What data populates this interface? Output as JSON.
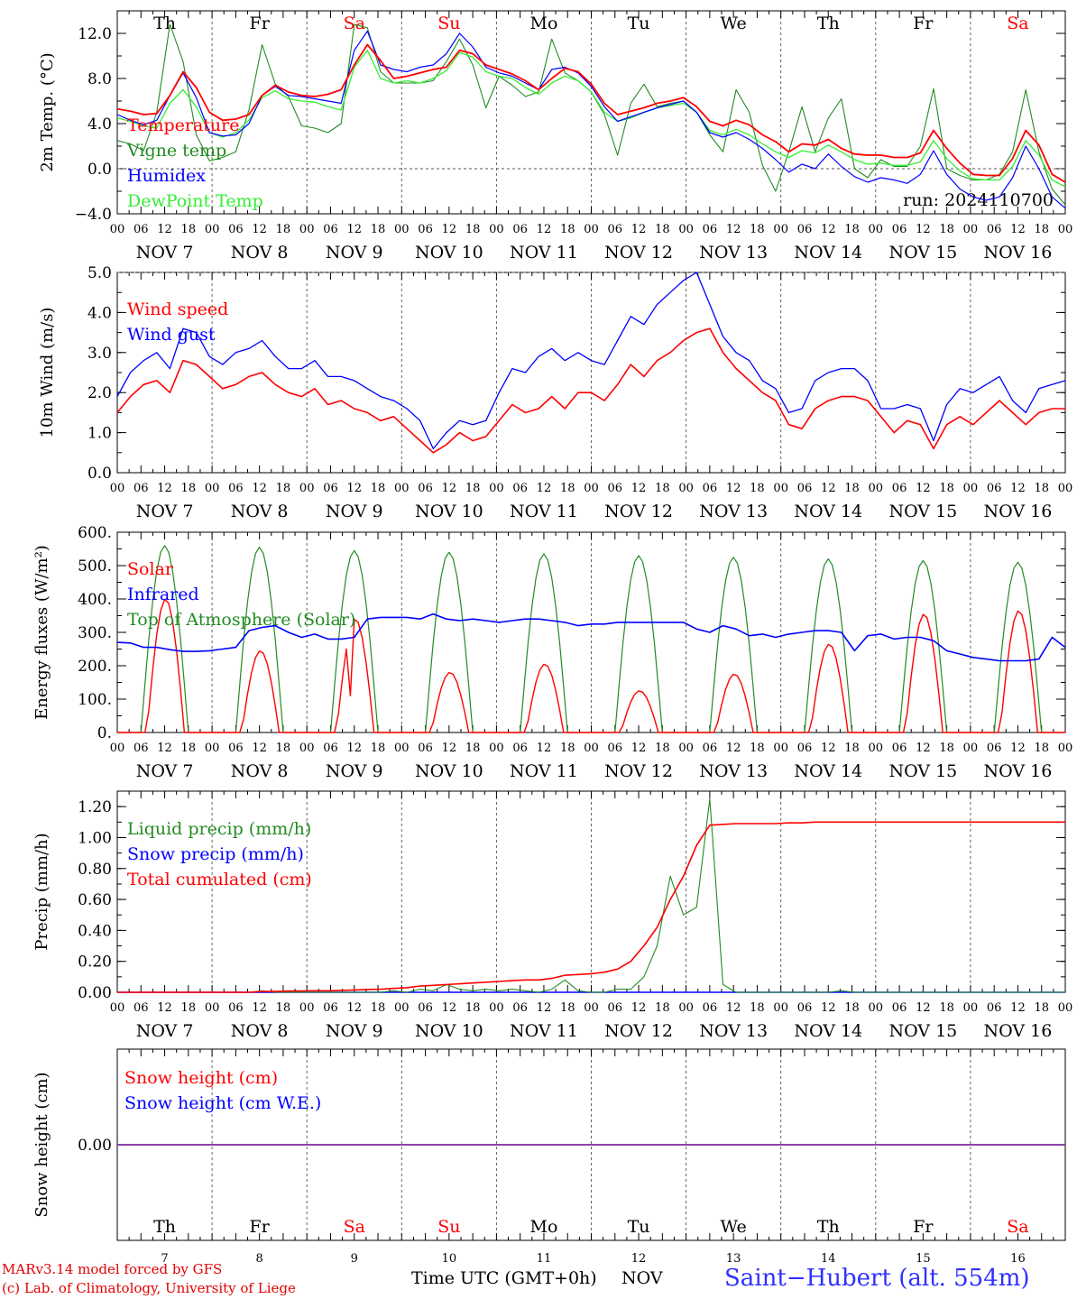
{
  "chart_data": [
    {
      "type": "line",
      "ylabel": "2m Temp. (°C)",
      "ylim": [
        -4.0,
        14.0
      ],
      "yticks": [
        -4.0,
        0.0,
        4.0,
        8.0,
        12.0
      ],
      "ytick_labels": [
        "−4.0",
        "0.0",
        "4.0",
        "8.0",
        "12.0"
      ],
      "legend_placement": "top-left",
      "annotation": "run: 2024110700",
      "series": [
        {
          "name": "Temperature",
          "color": "#ff0000",
          "values": [
            5.3,
            5.1,
            4.8,
            4.9,
            6.5,
            8.6,
            7.2,
            5.0,
            4.3,
            4.4,
            4.8,
            6.5,
            7.4,
            6.8,
            6.5,
            6.4,
            6.6,
            7.0,
            9.2,
            11.0,
            9.6,
            8.0,
            8.2,
            8.5,
            8.8,
            9.0,
            10.5,
            10.2,
            9.2,
            8.8,
            8.4,
            7.8,
            7.0,
            8.0,
            8.9,
            8.6,
            7.5,
            5.8,
            4.8,
            5.1,
            5.4,
            5.8,
            6.0,
            6.3,
            5.5,
            4.2,
            3.8,
            4.3,
            3.9,
            3.0,
            2.4,
            1.5,
            2.2,
            2.1,
            2.6,
            1.8,
            1.3,
            1.2,
            1.2,
            1.0,
            1.0,
            1.4,
            3.4,
            1.8,
            0.5,
            -0.5,
            -0.6,
            -0.6,
            0.9,
            3.4,
            2.1,
            -0.5,
            -1.2
          ]
        },
        {
          "name": "Vigne temp",
          "color": "#228b22",
          "values": [
            2.5,
            2.2,
            1.6,
            5.0,
            12.8,
            9.5,
            3.0,
            0.7,
            1.0,
            1.5,
            5.2,
            11.0,
            7.5,
            6.4,
            3.8,
            3.6,
            3.2,
            4.0,
            12.8,
            12.5,
            8.6,
            7.6,
            7.6,
            7.6,
            7.8,
            9.5,
            11.5,
            9.2,
            5.4,
            8.2,
            7.4,
            6.4,
            6.8,
            11.5,
            8.5,
            7.8,
            6.8,
            4.8,
            1.2,
            5.8,
            7.5,
            5.5,
            5.8,
            6.0,
            5.0,
            3.0,
            1.5,
            7.0,
            5.0,
            0.3,
            -2.0,
            1.5,
            5.5,
            1.5,
            4.5,
            6.2,
            0.0,
            -0.8,
            0.8,
            0.2,
            0.2,
            2.0,
            7.1,
            0.0,
            -0.6,
            -1.0,
            -1.0,
            -0.5,
            1.5,
            7.0,
            1.5,
            -1.8,
            -3.2
          ]
        },
        {
          "name": "Humidex",
          "color": "#0000ff",
          "values": [
            4.8,
            4.3,
            3.9,
            4.3,
            6.5,
            8.5,
            6.3,
            3.2,
            2.9,
            3.0,
            4.0,
            6.5,
            7.3,
            6.5,
            6.4,
            6.2,
            6.0,
            5.8,
            10.5,
            12.2,
            9.2,
            8.8,
            8.6,
            9.0,
            9.2,
            10.2,
            12.0,
            10.8,
            9.0,
            8.5,
            8.2,
            7.6,
            7.0,
            8.8,
            9.0,
            8.5,
            7.3,
            5.5,
            4.2,
            4.6,
            5.0,
            5.4,
            5.7,
            6.0,
            5.0,
            3.2,
            2.8,
            3.2,
            2.6,
            1.8,
            0.8,
            -0.3,
            0.4,
            0.0,
            1.3,
            0.2,
            -0.7,
            -1.2,
            -0.8,
            -1.0,
            -1.3,
            -0.5,
            1.6,
            -0.5,
            -1.8,
            -2.5,
            -2.8,
            -2.5,
            -0.8,
            2.0,
            0.0,
            -2.5,
            -3.5
          ]
        },
        {
          "name": "DewPoint Temp",
          "color": "#33ee33",
          "values": [
            4.5,
            4.2,
            3.8,
            3.6,
            5.8,
            7.0,
            5.5,
            3.2,
            2.8,
            3.2,
            4.3,
            6.3,
            6.9,
            6.2,
            6.0,
            5.9,
            5.5,
            5.2,
            9.0,
            10.5,
            8.0,
            7.6,
            7.8,
            7.6,
            8.0,
            8.7,
            10.3,
            9.9,
            8.6,
            8.2,
            8.0,
            7.2,
            6.6,
            7.6,
            8.2,
            7.8,
            6.8,
            5.0,
            4.2,
            4.5,
            5.0,
            5.4,
            5.6,
            5.8,
            5.0,
            3.4,
            3.0,
            3.5,
            3.0,
            2.2,
            1.5,
            1.0,
            1.6,
            1.4,
            2.1,
            1.5,
            0.8,
            0.4,
            0.5,
            0.3,
            0.3,
            0.6,
            2.5,
            0.9,
            -0.2,
            -0.9,
            -1.0,
            -1.0,
            0.2,
            2.5,
            1.2,
            -1.0,
            -1.6
          ]
        }
      ]
    },
    {
      "type": "line",
      "ylabel": "10m Wind (m/s)",
      "ylim": [
        0.0,
        5.0
      ],
      "yticks": [
        0.0,
        1.0,
        2.0,
        3.0,
        4.0,
        5.0
      ],
      "ytick_labels": [
        "0.0",
        "1.0",
        "2.0",
        "3.0",
        "4.0",
        "5.0"
      ],
      "legend_placement": "top-left",
      "series": [
        {
          "name": "Wind speed",
          "color": "#ff0000",
          "values": [
            1.5,
            1.9,
            2.2,
            2.3,
            2.0,
            2.8,
            2.7,
            2.4,
            2.1,
            2.2,
            2.4,
            2.5,
            2.2,
            2.0,
            1.9,
            2.1,
            1.7,
            1.8,
            1.6,
            1.5,
            1.3,
            1.4,
            1.1,
            0.8,
            0.5,
            0.7,
            1.0,
            0.8,
            0.9,
            1.3,
            1.7,
            1.5,
            1.6,
            1.9,
            1.6,
            2.0,
            2.0,
            1.8,
            2.2,
            2.7,
            2.4,
            2.8,
            3.0,
            3.3,
            3.5,
            3.6,
            3.0,
            2.6,
            2.3,
            2.0,
            1.8,
            1.2,
            1.1,
            1.6,
            1.8,
            1.9,
            1.9,
            1.8,
            1.4,
            1.0,
            1.3,
            1.2,
            0.6,
            1.2,
            1.4,
            1.2,
            1.5,
            1.8,
            1.5,
            1.2,
            1.5,
            1.6,
            1.6
          ]
        },
        {
          "name": "Wind gust",
          "color": "#0000ff",
          "values": [
            1.9,
            2.5,
            2.8,
            3.0,
            2.6,
            3.6,
            3.5,
            2.9,
            2.7,
            3.0,
            3.1,
            3.3,
            2.9,
            2.6,
            2.6,
            2.8,
            2.4,
            2.4,
            2.3,
            2.1,
            1.9,
            1.8,
            1.6,
            1.3,
            0.6,
            1.0,
            1.3,
            1.2,
            1.3,
            2.0,
            2.6,
            2.5,
            2.9,
            3.1,
            2.8,
            3.0,
            2.8,
            2.7,
            3.3,
            3.9,
            3.7,
            4.2,
            4.5,
            4.8,
            5.0,
            4.2,
            3.4,
            3.0,
            2.8,
            2.3,
            2.1,
            1.5,
            1.6,
            2.3,
            2.5,
            2.6,
            2.6,
            2.3,
            1.6,
            1.6,
            1.7,
            1.6,
            0.8,
            1.7,
            2.1,
            2.0,
            2.2,
            2.4,
            1.8,
            1.5,
            2.1,
            2.2,
            2.3
          ]
        }
      ]
    },
    {
      "type": "line",
      "ylabel": "Energy fluxes (W/m²)",
      "ylim": [
        0,
        600
      ],
      "yticks": [
        0,
        100,
        200,
        300,
        400,
        500,
        600
      ],
      "ytick_labels": [
        "0.",
        "100.",
        "200.",
        "300.",
        "400.",
        "500.",
        "600."
      ],
      "legend_placement": "top-left",
      "series": [
        {
          "name": "Solar",
          "color": "#ff0000",
          "days_peak": [
            400,
            245,
            340,
            180,
            205,
            125,
            175,
            265,
            355,
            365
          ],
          "dip_day3": 110
        },
        {
          "name": "Infrared",
          "color": "#0000ff",
          "values": [
            270,
            268,
            255,
            255,
            248,
            243,
            243,
            245,
            250,
            255,
            305,
            315,
            320,
            300,
            285,
            295,
            280,
            280,
            285,
            340,
            345,
            345,
            345,
            340,
            355,
            340,
            335,
            340,
            335,
            330,
            335,
            340,
            340,
            335,
            330,
            320,
            325,
            325,
            330,
            330,
            330,
            330,
            330,
            330,
            310,
            300,
            320,
            310,
            290,
            295,
            285,
            295,
            300,
            305,
            305,
            300,
            245,
            290,
            295,
            280,
            285,
            285,
            275,
            245,
            235,
            225,
            220,
            215,
            215,
            215,
            220,
            285,
            255
          ]
        },
        {
          "name": "Top of Atmosphere (Solar)",
          "color": "#228b22",
          "days_peak": [
            560,
            555,
            545,
            540,
            535,
            530,
            525,
            520,
            515,
            510
          ]
        }
      ]
    },
    {
      "type": "line",
      "ylabel": "Precip (mm/h)",
      "ylim": [
        0.0,
        1.3
      ],
      "yticks": [
        0.0,
        0.2,
        0.4,
        0.6,
        0.8,
        1.0,
        1.2
      ],
      "ytick_labels": [
        "0.00",
        "0.20",
        "0.40",
        "0.60",
        "0.80",
        "1.00",
        "1.20"
      ],
      "legend_placement": "top-left",
      "series": [
        {
          "name": "Liquid precip (mm/h)",
          "color": "#228b22",
          "values": [
            0,
            0,
            0,
            0,
            0,
            0,
            0,
            0,
            0,
            0,
            0,
            0.01,
            0,
            0,
            0,
            0,
            0,
            0,
            0,
            0,
            0,
            0.01,
            0,
            0.02,
            0.01,
            0.05,
            0.02,
            0.01,
            0.02,
            0.01,
            0.02,
            0.01,
            0,
            0.02,
            0.08,
            0.01,
            0,
            0,
            0.02,
            0.02,
            0.1,
            0.3,
            0.75,
            0.5,
            0.55,
            1.25,
            0.05,
            0,
            0,
            0,
            0,
            0,
            0,
            0,
            0,
            0.01,
            0,
            0,
            0,
            0,
            0,
            0,
            0,
            0,
            0,
            0,
            0,
            0,
            0,
            0,
            0,
            0,
            0
          ]
        },
        {
          "name": "Snow precip (mm/h)",
          "color": "#0000ff",
          "values": [
            0,
            0,
            0,
            0,
            0,
            0,
            0,
            0,
            0,
            0,
            0,
            0,
            0,
            0,
            0,
            0,
            0,
            0,
            0,
            0,
            0,
            0,
            0,
            0,
            0,
            0,
            0,
            0,
            0,
            0,
            0,
            0,
            0,
            0,
            0,
            0,
            0,
            0,
            0,
            0,
            0,
            0,
            0,
            0,
            0,
            0,
            0,
            0,
            0,
            0,
            0,
            0,
            0,
            0,
            0,
            0,
            0,
            0,
            0,
            0,
            0,
            0,
            0,
            0,
            0,
            0,
            0,
            0,
            0,
            0,
            0,
            0,
            0
          ]
        },
        {
          "name": "Total cumulated (cm)",
          "color": "#ff0000",
          "values": [
            0,
            0,
            0,
            0,
            0,
            0,
            0,
            0,
            0,
            0,
            0,
            0.005,
            0.005,
            0.008,
            0.008,
            0.01,
            0.01,
            0.012,
            0.015,
            0.018,
            0.02,
            0.025,
            0.03,
            0.04,
            0.045,
            0.05,
            0.055,
            0.06,
            0.065,
            0.07,
            0.075,
            0.08,
            0.08,
            0.09,
            0.11,
            0.115,
            0.12,
            0.13,
            0.15,
            0.2,
            0.3,
            0.42,
            0.6,
            0.75,
            0.95,
            1.08,
            1.085,
            1.09,
            1.09,
            1.09,
            1.09,
            1.095,
            1.095,
            1.1,
            1.1,
            1.1,
            1.1,
            1.1,
            1.1,
            1.1,
            1.1,
            1.1,
            1.1,
            1.1,
            1.1,
            1.1,
            1.1,
            1.1,
            1.1,
            1.1,
            1.1,
            1.1,
            1.1
          ]
        }
      ]
    },
    {
      "type": "line",
      "ylabel": "Snow height (cm)",
      "ylim": [
        -0.05,
        0.05
      ],
      "yticks": [
        0.0
      ],
      "ytick_labels": [
        "0.00"
      ],
      "legend_placement": "top-left",
      "series": [
        {
          "name": "Snow height (cm)",
          "color": "#ff0000",
          "values": [
            0,
            0
          ]
        },
        {
          "name": "Snow height (cm W.E.)",
          "color": "#0000ff",
          "values": [
            0,
            0
          ]
        }
      ]
    }
  ],
  "xaxis": {
    "hour_labels": [
      "00",
      "06",
      "12",
      "18"
    ],
    "final_hour_label": "00",
    "dates": [
      "NOV  7",
      "NOV  8",
      "NOV  9",
      "NOV 10",
      "NOV 11",
      "NOV 12",
      "NOV 13",
      "NOV 14",
      "NOV 15",
      "NOV 16"
    ],
    "weekdays": [
      "Th",
      "Fr",
      "Sa",
      "Su",
      "Mo",
      "Tu",
      "We",
      "Th",
      "Fr",
      "Sa"
    ],
    "weekday_colors": [
      "#000000",
      "#000000",
      "#ff0000",
      "#ff0000",
      "#000000",
      "#000000",
      "#000000",
      "#000000",
      "#000000",
      "#ff0000"
    ],
    "day_numbers": [
      "7",
      "8",
      "9",
      "10",
      "11",
      "12",
      "13",
      "14",
      "15",
      "16"
    ]
  },
  "footer": {
    "credit_line1": "MARv3.14 model forced by GFS",
    "credit_line2": "(c) Lab. of Climatology, University of Liege",
    "time_label": "Time UTC (GMT+0h)",
    "month": "NOV",
    "station": "Saint−Hubert (alt. 554m)"
  }
}
